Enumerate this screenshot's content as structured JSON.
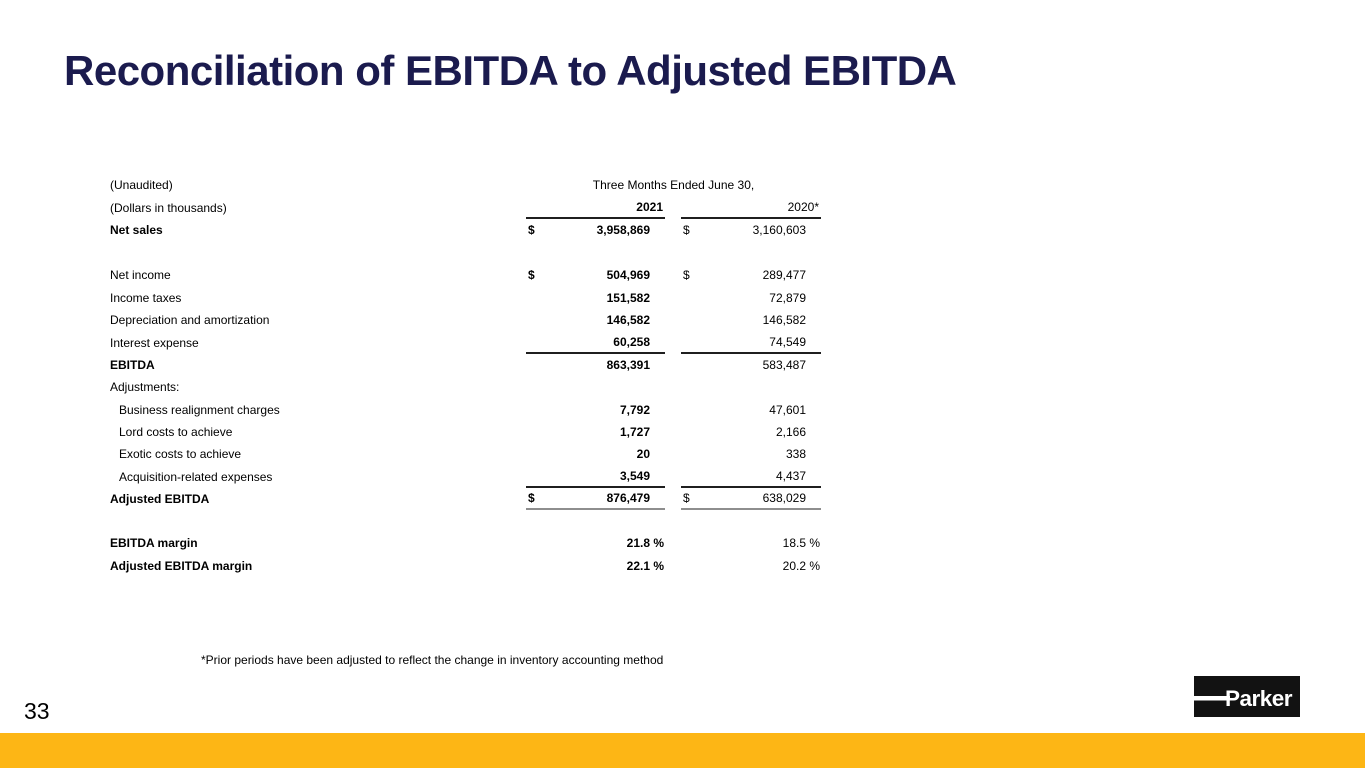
{
  "slide": {
    "title": "Reconciliation of EBITDA to Adjusted EBITDA",
    "footnote": "*Prior periods have been adjusted to reflect the change in inventory accounting method",
    "page_number": "33",
    "logo_text": "Parker",
    "colors": {
      "title": "#1B1B4E",
      "accent_bar": "#FDB615",
      "logo_bg": "#121212"
    }
  },
  "table": {
    "unaudited_label": "(Unaudited)",
    "dollars_label": "(Dollars in thousands)",
    "period_header": "Three Months Ended June 30,",
    "col_headers": [
      "2021",
      "2020*"
    ],
    "rows": [
      {
        "label": "Net sales",
        "bold": true,
        "d1": "$",
        "v1": "3,958,869",
        "d2": "$",
        "v2": "3,160,603"
      },
      {
        "spacer": 1
      },
      {
        "label": "Net income",
        "d1": "$",
        "v1": "504,969",
        "d2": "$",
        "v2": "289,477"
      },
      {
        "label": "Income taxes",
        "v1": "151,582",
        "v2": "72,879"
      },
      {
        "label": "Depreciation and amortization",
        "v1": "146,582",
        "v2": "146,582"
      },
      {
        "label": "Interest expense",
        "v1": "60,258",
        "v2": "74,549",
        "border": "dark"
      },
      {
        "label": "EBITDA",
        "bold": true,
        "v1": "863,391",
        "v2": "583,487"
      },
      {
        "label": "Adjustments:"
      },
      {
        "label": "Business realignment charges",
        "indent": true,
        "v1": "7,792",
        "v2": "47,601"
      },
      {
        "label": "Lord costs to achieve",
        "indent": true,
        "v1": "1,727",
        "v2": "2,166"
      },
      {
        "label": "Exotic costs to achieve",
        "indent": true,
        "v1": "20",
        "v2": "338"
      },
      {
        "label": "Acquisition-related expenses",
        "indent": true,
        "v1": "3,549",
        "v2": "4,437",
        "border": "dark"
      },
      {
        "label": "Adjusted EBITDA",
        "bold": true,
        "d1": "$",
        "v1": "876,479",
        "d2": "$",
        "v2": "638,029",
        "border": "gray"
      },
      {
        "spacer": 2
      },
      {
        "label": "EBITDA margin",
        "bold": true,
        "v1": "21.8 %",
        "v2": "18.5 %",
        "pct": true
      },
      {
        "label": "Adjusted EBITDA margin",
        "bold": true,
        "v1": "22.1 %",
        "v2": "20.2 %",
        "pct": true
      }
    ]
  }
}
